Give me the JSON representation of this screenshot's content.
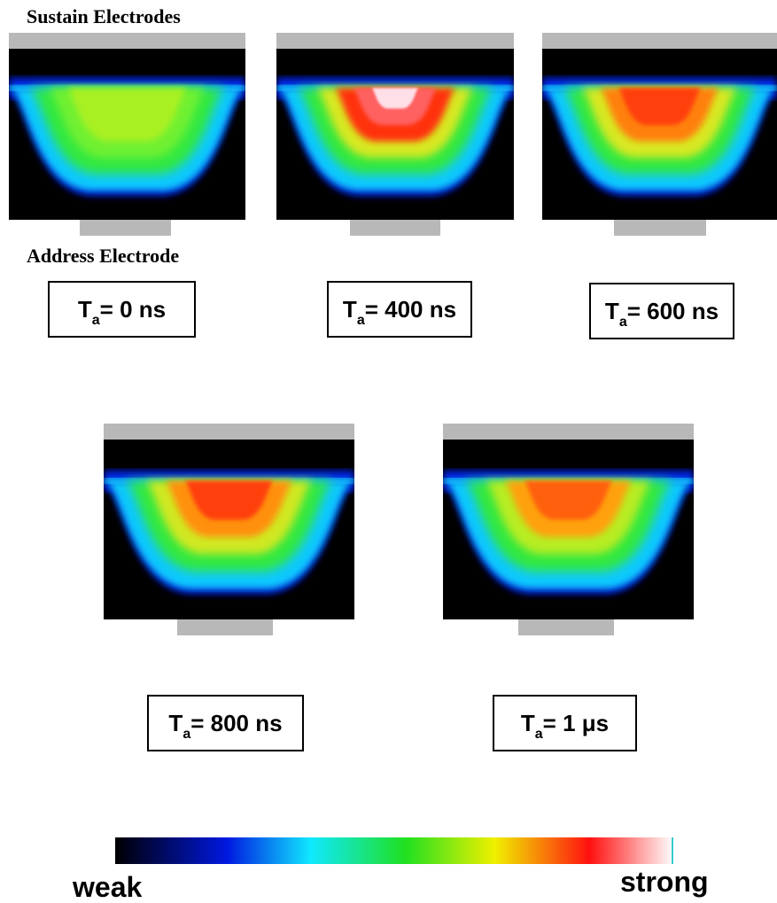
{
  "header": {
    "top_label": "Sustain Electrodes",
    "bottom_label": "Address Electrode"
  },
  "panels": [
    {
      "symbol": "T",
      "subscript": "a",
      "rest": "= 0 ns"
    },
    {
      "symbol": "T",
      "subscript": "a",
      "rest": "= 400 ns"
    },
    {
      "symbol": "T",
      "subscript": "a",
      "rest": "= 600 ns"
    },
    {
      "symbol": "T",
      "subscript": "a",
      "rest": "= 800 ns"
    },
    {
      "symbol": "T",
      "subscript": "a",
      "rest": "= 1 μs"
    }
  ],
  "colorbar": {
    "low_label": "weak",
    "high_label": "strong"
  }
}
